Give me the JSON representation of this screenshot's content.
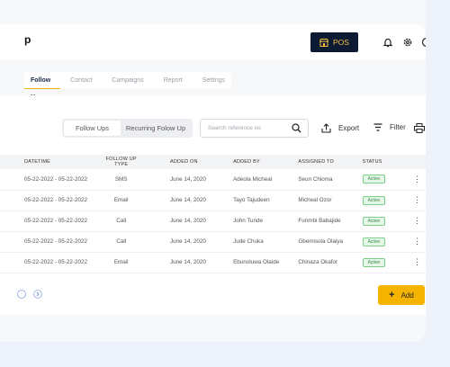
{
  "header": {
    "logo_fragment": "p",
    "pos_button": "POS",
    "icons": [
      "bell-icon",
      "gear-icon",
      "user-icon"
    ]
  },
  "tabs": [
    {
      "label": "Follow Ups",
      "active": true
    },
    {
      "label": "Contact",
      "active": false
    },
    {
      "label": "Campaigns",
      "active": false
    },
    {
      "label": "Report",
      "active": false
    },
    {
      "label": "Settings",
      "active": false
    }
  ],
  "toolbar": {
    "segment_left": "Follow Ups",
    "segment_right": "Recurring Folow Up",
    "search_placeholder": "Search reference no",
    "export_label": "Export",
    "filter_label": "Filter"
  },
  "table": {
    "headers": [
      "DATETIME",
      "FOLLOW UP TYPE",
      "ADDED ON",
      "ADDED BY",
      "ASSIGNED TO",
      "STATUS"
    ],
    "rows": [
      {
        "datetime": "05-22-2022 - 05-22-2022",
        "type": "SMS",
        "added_on": "June 14, 2020",
        "added_by": "Adeola Micheal",
        "assigned_to": "Seun Chioma",
        "status": "Active"
      },
      {
        "datetime": "05-22-2022 - 05-22-2022",
        "type": "Email",
        "added_on": "June 14, 2020",
        "added_by": "Tayo Tajudeen",
        "assigned_to": "Micheal Ozor",
        "status": "Active"
      },
      {
        "datetime": "05-22-2022 - 05-22-2022",
        "type": "Call",
        "added_on": "June 14, 2020",
        "added_by": "John Tunde",
        "assigned_to": "Funmbi Babajide",
        "status": "Active"
      },
      {
        "datetime": "05-22-2022 - 05-22-2022",
        "type": "Call",
        "added_on": "June 14, 2020",
        "added_by": "Jude Chuka",
        "assigned_to": "Gbemisola Olaiya",
        "status": "Active"
      },
      {
        "datetime": "05-22-2022 - 05-22-2022",
        "type": "Email",
        "added_on": "June 14, 2020",
        "added_by": "Ebunoluwa Olaide",
        "assigned_to": "Chinaza Okafor",
        "status": "Active"
      }
    ]
  },
  "footer": {
    "add_button": "Add"
  },
  "colors": {
    "accent": "#f5b400",
    "pos_bg": "#0d1a33",
    "active_badge": "#2f8d42"
  }
}
